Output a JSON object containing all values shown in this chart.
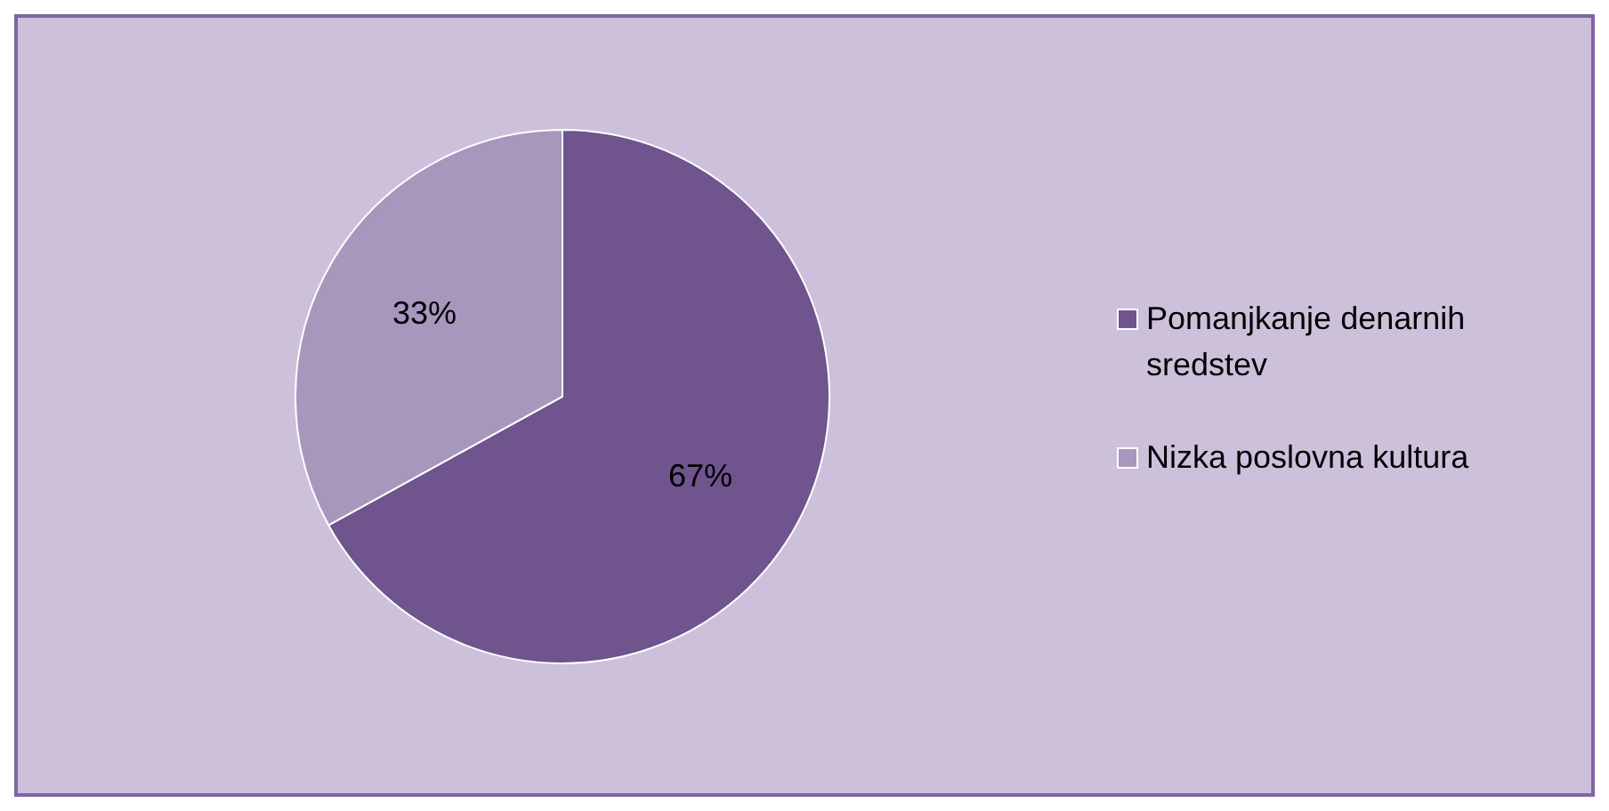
{
  "chart_data": {
    "type": "pie",
    "categories": [
      "Pomanjkanje denarnih sredstev",
      "Nizka poslovna kultura"
    ],
    "values": [
      67,
      33
    ],
    "colors": [
      "#6f548e",
      "#a797bd"
    ],
    "value_labels": [
      "67%",
      "33%"
    ],
    "legend": "right"
  }
}
